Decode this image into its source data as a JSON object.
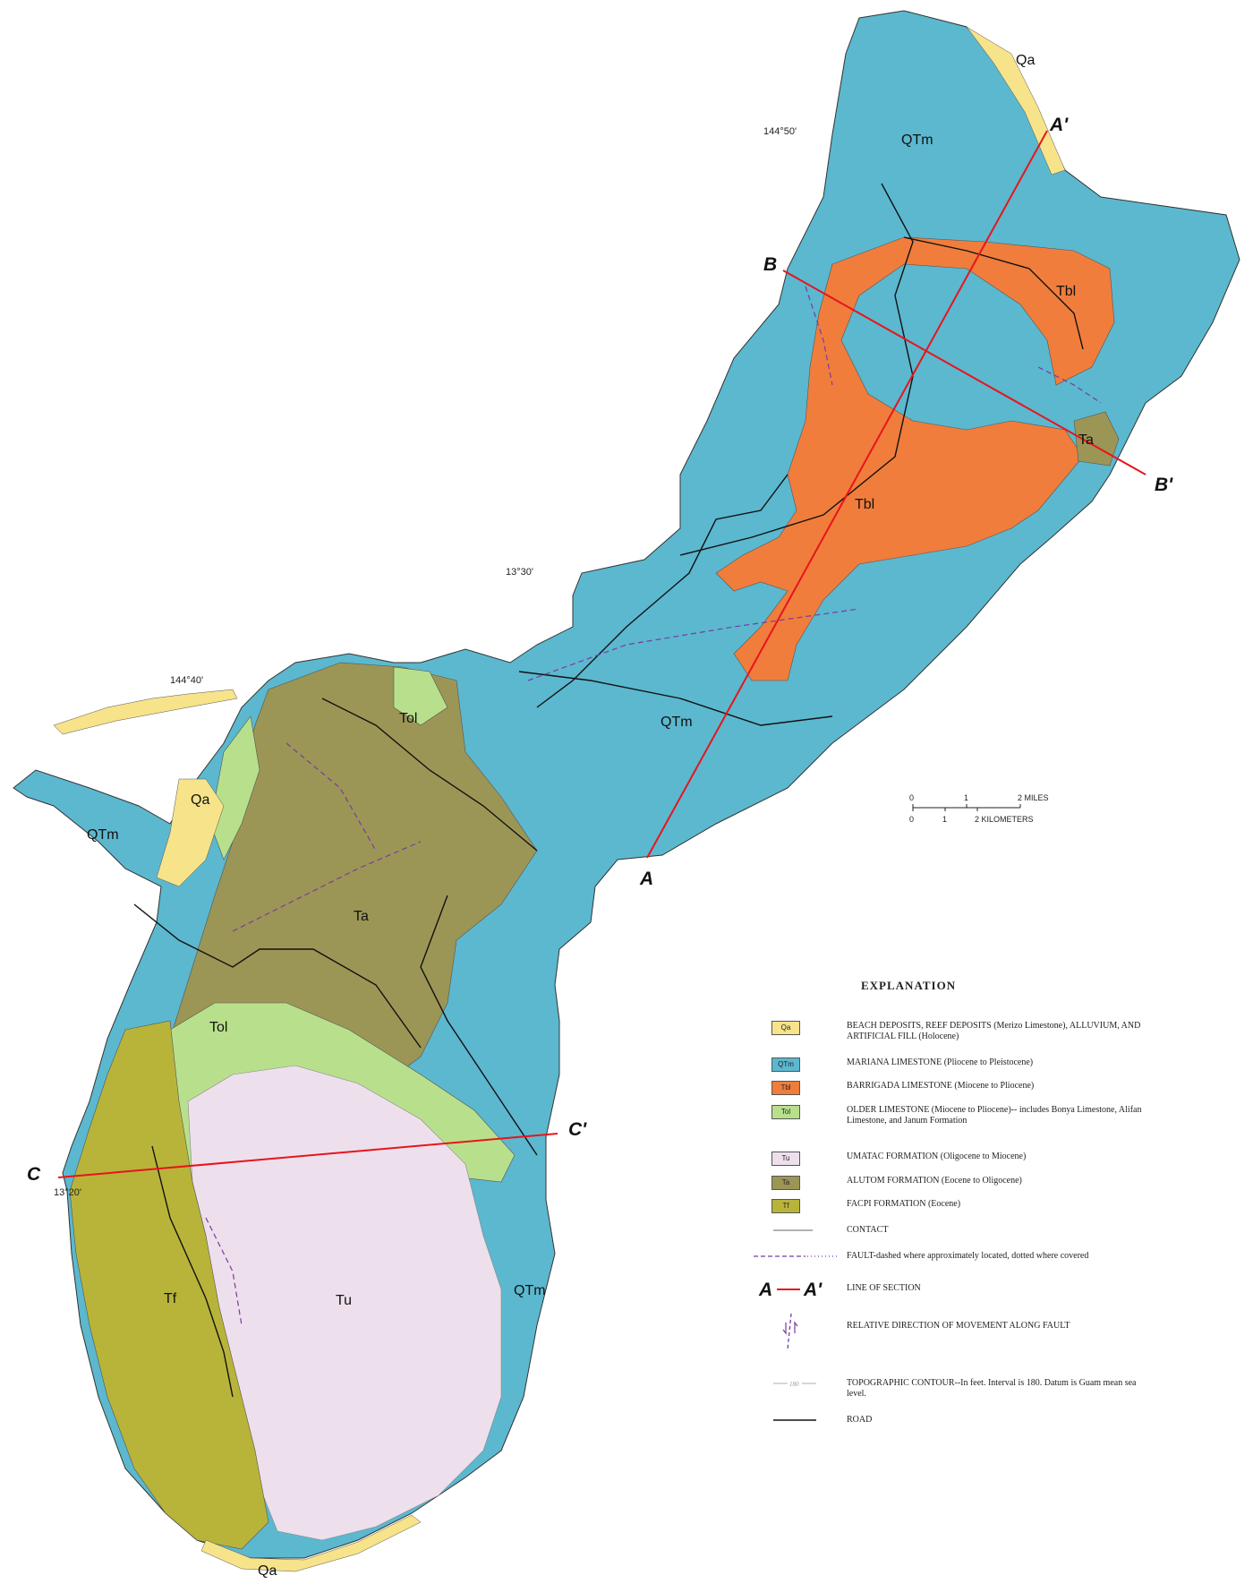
{
  "colors": {
    "qa": "#f7e38a",
    "qtm": "#5bb8cf",
    "tbl": "#f07d3c",
    "tol": "#b8e08c",
    "tu": "#ede0ec",
    "ta": "#9c9656",
    "tf": "#b8b43a",
    "section": "#e8141c",
    "fault": "#7a3aa0",
    "road": "#111111"
  },
  "map": {
    "unit_labels": [
      "QTm",
      "Tbl",
      "Tbl",
      "Ta",
      "QTm",
      "Qa",
      "QTm",
      "Tol",
      "Ta",
      "Tol",
      "Tf",
      "Tu",
      "QTm",
      "Qa",
      "Qa"
    ],
    "coordinate_labels": [
      "144°50'",
      "13°30'",
      "144°40'",
      "13°20'"
    ],
    "section_labels": [
      "A",
      "A'",
      "B",
      "B'",
      "C",
      "C'"
    ]
  },
  "scale": {
    "miles_ticks": [
      "0",
      "1",
      "2 MILES"
    ],
    "km_ticks": [
      "0",
      "1",
      "2 KILOMETERS"
    ]
  },
  "legend": {
    "title": "EXPLANATION",
    "units": [
      {
        "code": "Qa",
        "text": "BEACH DEPOSITS, REEF DEPOSITS (Merizo Limestone), ALLUVIUM, AND ARTIFICIAL FILL (Holocene)"
      },
      {
        "code": "QTm",
        "text": "MARIANA LIMESTONE (Pliocene to Pleistocene)"
      },
      {
        "code": "Tbl",
        "text": "BARRIGADA LIMESTONE (Miocene to Pliocene)"
      },
      {
        "code": "Tol",
        "text": "OLDER LIMESTONE (Miocene to Pliocene)-- includes Bonya Limestone, Alifan Limestone, and Janum Formation"
      },
      {
        "code": "Tu",
        "text": "UMATAC FORMATION (Oligocene to Miocene)"
      },
      {
        "code": "Ta",
        "text": "ALUTOM FORMATION (Eocene to Oligocene)"
      },
      {
        "code": "Tf",
        "text": "FACPI FORMATION (Eocene)"
      }
    ],
    "symbols": [
      {
        "kind": "contact",
        "text": "CONTACT"
      },
      {
        "kind": "fault",
        "text": "FAULT-dashed where approximately located, dotted where covered"
      },
      {
        "kind": "section",
        "text": "LINE OF SECTION",
        "a": "A",
        "b": "A'"
      },
      {
        "kind": "movement",
        "text": "RELATIVE DIRECTION OF MOVEMENT ALONG FAULT"
      },
      {
        "kind": "topo",
        "text": "TOPOGRAPHIC CONTOUR--In feet. Interval is 180. Datum is Guam mean sea level.",
        "sample": "180"
      },
      {
        "kind": "road",
        "text": "ROAD"
      }
    ]
  }
}
